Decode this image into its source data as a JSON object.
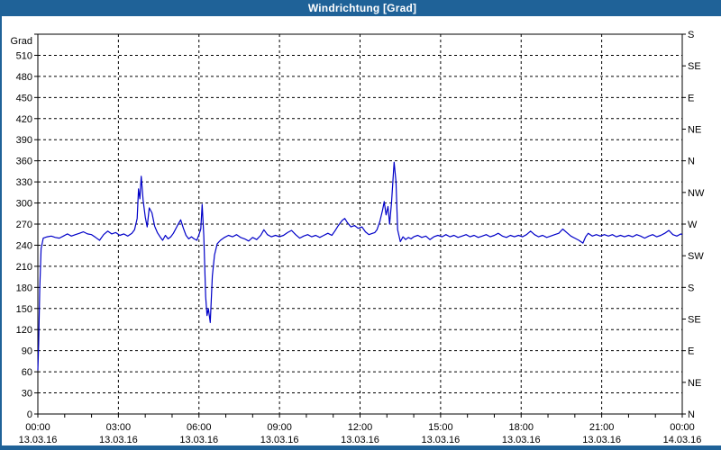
{
  "window": {
    "title": "Windrichtung [Grad]"
  },
  "colors": {
    "titlebar": "#1f6298",
    "border": "#1f6298",
    "background": "#ffffff",
    "grid": "#000000",
    "axis": "#000000",
    "line": "#0000c8"
  },
  "chart_data": {
    "type": "line",
    "title": "Windrichtung [Grad]",
    "grid": "dashed",
    "legend": "none",
    "y_left": {
      "label": "Grad",
      "min": 0,
      "max": 540,
      "tick_step": 30,
      "tick_labels": [
        "0",
        "30",
        "60",
        "90",
        "120",
        "150",
        "180",
        "210",
        "240",
        "270",
        "300",
        "330",
        "360",
        "390",
        "420",
        "450",
        "480",
        "510"
      ]
    },
    "y_right": {
      "tick_step": 45,
      "labels_bottom_to_top": [
        "N",
        "NE",
        "E",
        "SE",
        "S",
        "SW",
        "W",
        "NW",
        "N",
        "NE",
        "E",
        "SE",
        "S"
      ]
    },
    "x": {
      "range_hours": [
        0,
        24
      ],
      "major_step_hours": 3,
      "minor_step_hours": 1,
      "ticks": [
        {
          "hour": 0,
          "time": "00:00",
          "date": "13.03.16"
        },
        {
          "hour": 3,
          "time": "03:00",
          "date": "13.03.16"
        },
        {
          "hour": 6,
          "time": "06:00",
          "date": "13.03.16"
        },
        {
          "hour": 9,
          "time": "09:00",
          "date": "13.03.16"
        },
        {
          "hour": 12,
          "time": "12:00",
          "date": "13.03.16"
        },
        {
          "hour": 15,
          "time": "15:00",
          "date": "13.03.16"
        },
        {
          "hour": 18,
          "time": "18:00",
          "date": "13.03.16"
        },
        {
          "hour": 21,
          "time": "21:00",
          "date": "13.03.16"
        },
        {
          "hour": 24,
          "time": "00:00",
          "date": "14.03.16"
        }
      ]
    },
    "series": [
      {
        "name": "Windrichtung",
        "unit": "Grad",
        "color": "#0000c8",
        "points": [
          [
            0.0,
            62
          ],
          [
            0.03,
            100
          ],
          [
            0.07,
            178
          ],
          [
            0.12,
            235
          ],
          [
            0.2,
            250
          ],
          [
            0.35,
            252
          ],
          [
            0.5,
            253
          ],
          [
            0.65,
            251
          ],
          [
            0.8,
            250
          ],
          [
            0.95,
            253
          ],
          [
            1.1,
            256
          ],
          [
            1.25,
            253
          ],
          [
            1.4,
            255
          ],
          [
            1.55,
            257
          ],
          [
            1.7,
            259
          ],
          [
            1.85,
            256
          ],
          [
            2.0,
            255
          ],
          [
            2.15,
            251
          ],
          [
            2.3,
            247
          ],
          [
            2.45,
            255
          ],
          [
            2.6,
            260
          ],
          [
            2.75,
            256
          ],
          [
            2.9,
            258
          ],
          [
            3.05,
            254
          ],
          [
            3.2,
            256
          ],
          [
            3.35,
            253
          ],
          [
            3.5,
            257
          ],
          [
            3.6,
            262
          ],
          [
            3.7,
            278
          ],
          [
            3.75,
            320
          ],
          [
            3.8,
            306
          ],
          [
            3.85,
            338
          ],
          [
            3.92,
            304
          ],
          [
            4.0,
            280
          ],
          [
            4.07,
            266
          ],
          [
            4.15,
            293
          ],
          [
            4.25,
            286
          ],
          [
            4.35,
            267
          ],
          [
            4.45,
            258
          ],
          [
            4.55,
            252
          ],
          [
            4.65,
            247
          ],
          [
            4.75,
            254
          ],
          [
            4.85,
            249
          ],
          [
            4.95,
            252
          ],
          [
            5.05,
            257
          ],
          [
            5.2,
            268
          ],
          [
            5.32,
            276
          ],
          [
            5.42,
            264
          ],
          [
            5.52,
            254
          ],
          [
            5.62,
            249
          ],
          [
            5.72,
            252
          ],
          [
            5.82,
            249
          ],
          [
            5.92,
            247
          ],
          [
            6.0,
            255
          ],
          [
            6.07,
            263
          ],
          [
            6.12,
            298
          ],
          [
            6.18,
            254
          ],
          [
            6.25,
            167
          ],
          [
            6.3,
            140
          ],
          [
            6.35,
            150
          ],
          [
            6.42,
            130
          ],
          [
            6.5,
            196
          ],
          [
            6.58,
            226
          ],
          [
            6.68,
            242
          ],
          [
            6.8,
            247
          ],
          [
            6.95,
            251
          ],
          [
            7.1,
            254
          ],
          [
            7.25,
            252
          ],
          [
            7.4,
            255
          ],
          [
            7.55,
            251
          ],
          [
            7.7,
            249
          ],
          [
            7.85,
            246
          ],
          [
            8.0,
            251
          ],
          [
            8.15,
            248
          ],
          [
            8.3,
            254
          ],
          [
            8.42,
            262
          ],
          [
            8.55,
            255
          ],
          [
            8.7,
            252
          ],
          [
            8.85,
            254
          ],
          [
            9.0,
            252
          ],
          [
            9.15,
            254
          ],
          [
            9.3,
            258
          ],
          [
            9.45,
            261
          ],
          [
            9.6,
            255
          ],
          [
            9.75,
            250
          ],
          [
            9.9,
            253
          ],
          [
            10.05,
            255
          ],
          [
            10.2,
            252
          ],
          [
            10.35,
            254
          ],
          [
            10.5,
            251
          ],
          [
            10.65,
            254
          ],
          [
            10.8,
            257
          ],
          [
            10.95,
            254
          ],
          [
            11.06,
            260
          ],
          [
            11.19,
            268
          ],
          [
            11.33,
            275
          ],
          [
            11.43,
            278
          ],
          [
            11.53,
            272
          ],
          [
            11.66,
            266
          ],
          [
            11.8,
            268
          ],
          [
            11.93,
            264
          ],
          [
            12.07,
            266
          ],
          [
            12.2,
            259
          ],
          [
            12.33,
            255
          ],
          [
            12.47,
            257
          ],
          [
            12.55,
            258
          ],
          [
            12.63,
            262
          ],
          [
            12.74,
            274
          ],
          [
            12.84,
            290
          ],
          [
            12.9,
            302
          ],
          [
            12.97,
            283
          ],
          [
            13.04,
            295
          ],
          [
            13.1,
            270
          ],
          [
            13.17,
            300
          ],
          [
            13.27,
            358
          ],
          [
            13.34,
            330
          ],
          [
            13.4,
            262
          ],
          [
            13.5,
            245
          ],
          [
            13.6,
            252
          ],
          [
            13.7,
            248
          ],
          [
            13.8,
            251
          ],
          [
            13.9,
            249
          ],
          [
            14.0,
            252
          ],
          [
            14.15,
            254
          ],
          [
            14.3,
            251
          ],
          [
            14.45,
            253
          ],
          [
            14.6,
            248
          ],
          [
            14.75,
            252
          ],
          [
            14.9,
            254
          ],
          [
            15.05,
            252
          ],
          [
            15.2,
            255
          ],
          [
            15.35,
            252
          ],
          [
            15.5,
            254
          ],
          [
            15.65,
            251
          ],
          [
            15.8,
            253
          ],
          [
            15.95,
            255
          ],
          [
            16.1,
            252
          ],
          [
            16.25,
            254
          ],
          [
            16.4,
            251
          ],
          [
            16.55,
            253
          ],
          [
            16.7,
            255
          ],
          [
            16.85,
            252
          ],
          [
            17.0,
            254
          ],
          [
            17.15,
            257
          ],
          [
            17.3,
            253
          ],
          [
            17.45,
            251
          ],
          [
            17.6,
            254
          ],
          [
            17.75,
            252
          ],
          [
            17.9,
            254
          ],
          [
            18.05,
            252
          ],
          [
            18.2,
            255
          ],
          [
            18.35,
            260
          ],
          [
            18.5,
            255
          ],
          [
            18.65,
            252
          ],
          [
            18.8,
            254
          ],
          [
            18.95,
            251
          ],
          [
            19.1,
            253
          ],
          [
            19.25,
            255
          ],
          [
            19.4,
            257
          ],
          [
            19.55,
            263
          ],
          [
            19.7,
            258
          ],
          [
            19.85,
            253
          ],
          [
            20.0,
            250
          ],
          [
            20.15,
            247
          ],
          [
            20.3,
            243
          ],
          [
            20.4,
            252
          ],
          [
            20.5,
            257
          ],
          [
            20.65,
            253
          ],
          [
            20.8,
            255
          ],
          [
            20.95,
            253
          ],
          [
            21.1,
            255
          ],
          [
            21.25,
            253
          ],
          [
            21.4,
            255
          ],
          [
            21.55,
            252
          ],
          [
            21.7,
            254
          ],
          [
            21.85,
            252
          ],
          [
            22.0,
            254
          ],
          [
            22.15,
            252
          ],
          [
            22.3,
            255
          ],
          [
            22.45,
            253
          ],
          [
            22.6,
            250
          ],
          [
            22.75,
            253
          ],
          [
            22.9,
            255
          ],
          [
            23.05,
            252
          ],
          [
            23.2,
            254
          ],
          [
            23.35,
            257
          ],
          [
            23.5,
            261
          ],
          [
            23.65,
            255
          ],
          [
            23.8,
            253
          ],
          [
            23.95,
            256
          ],
          [
            24.0,
            255
          ]
        ]
      }
    ]
  }
}
